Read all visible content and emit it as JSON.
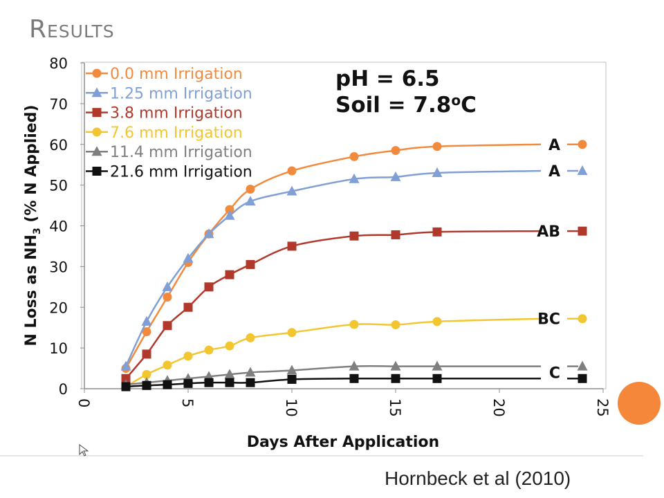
{
  "slide": {
    "title": "Results",
    "citation": "Hornbeck et al (2010)",
    "accent_color": "#f5873a"
  },
  "chart_data": {
    "type": "line",
    "title": "",
    "xlabel": "Days After Application",
    "ylabel_parts": [
      "N Loss as NH",
      "3",
      " (% N Applied)"
    ],
    "xlim": [
      0,
      25
    ],
    "ylim": [
      0,
      80
    ],
    "xticks": [
      "0",
      "5",
      "10",
      "15",
      "20",
      "25"
    ],
    "yticks": [
      "0",
      "10",
      "20",
      "30",
      "40",
      "50",
      "60",
      "70",
      "80"
    ],
    "grid": false,
    "legend_position": "top-left",
    "annotation_ph": "pH = 6.5",
    "annotation_soil": {
      "prefix": "Soil = 7.8",
      "sup": "o",
      "suffix": "C"
    },
    "x": [
      2,
      3,
      4,
      5,
      6,
      7,
      8,
      10,
      13,
      15,
      17
    ],
    "series": [
      {
        "name": "0.0 mm Irrigation",
        "color": "#f28a3e",
        "marker": "circle",
        "values": [
          5,
          14,
          22.5,
          31,
          38,
          44,
          49,
          53.5,
          57,
          58.5,
          59.5
        ],
        "group": "A",
        "end_value": 60
      },
      {
        "name": "1.25 mm Irrigation",
        "color": "#7f9fd5",
        "marker": "triangle",
        "values": [
          5.5,
          16.5,
          25,
          32,
          38,
          42.5,
          46,
          48.5,
          51.5,
          52,
          53
        ],
        "group": "A",
        "end_value": 53.5
      },
      {
        "name": "3.8 mm Irrigation",
        "color": "#b0392b",
        "marker": "square",
        "values": [
          2.5,
          8.5,
          15.5,
          20,
          25,
          28,
          30.5,
          35,
          37.5,
          37.8,
          38.5
        ],
        "group": "AB",
        "end_value": 38.7
      },
      {
        "name": "7.6 mm Irrigation",
        "color": "#f2c631",
        "marker": "circle",
        "values": [
          0.5,
          3.5,
          5.8,
          8,
          9.5,
          10.5,
          12.5,
          13.8,
          15.8,
          15.7,
          16.5
        ],
        "group": "BC",
        "end_value": 17.2
      },
      {
        "name": "11.4 mm Irrigation",
        "color": "#7f7f7f",
        "marker": "triangle",
        "values": [
          1,
          1.5,
          2,
          2.5,
          3,
          3.5,
          4,
          4.5,
          5.5,
          5.5,
          5.5
        ],
        "group": "C",
        "end_value": 5.5
      },
      {
        "name": "21.6 mm Irrigation",
        "color": "#111111",
        "marker": "square",
        "values": [
          0.5,
          0.8,
          1,
          1.3,
          1.5,
          1.5,
          1.5,
          2.3,
          2.5,
          2.5,
          2.5
        ],
        "group": "C",
        "end_value": 2.5
      }
    ],
    "end_x": 24,
    "end_curve_x": 22,
    "groups": [
      "A",
      "A",
      "AB",
      "BC",
      "C"
    ]
  }
}
